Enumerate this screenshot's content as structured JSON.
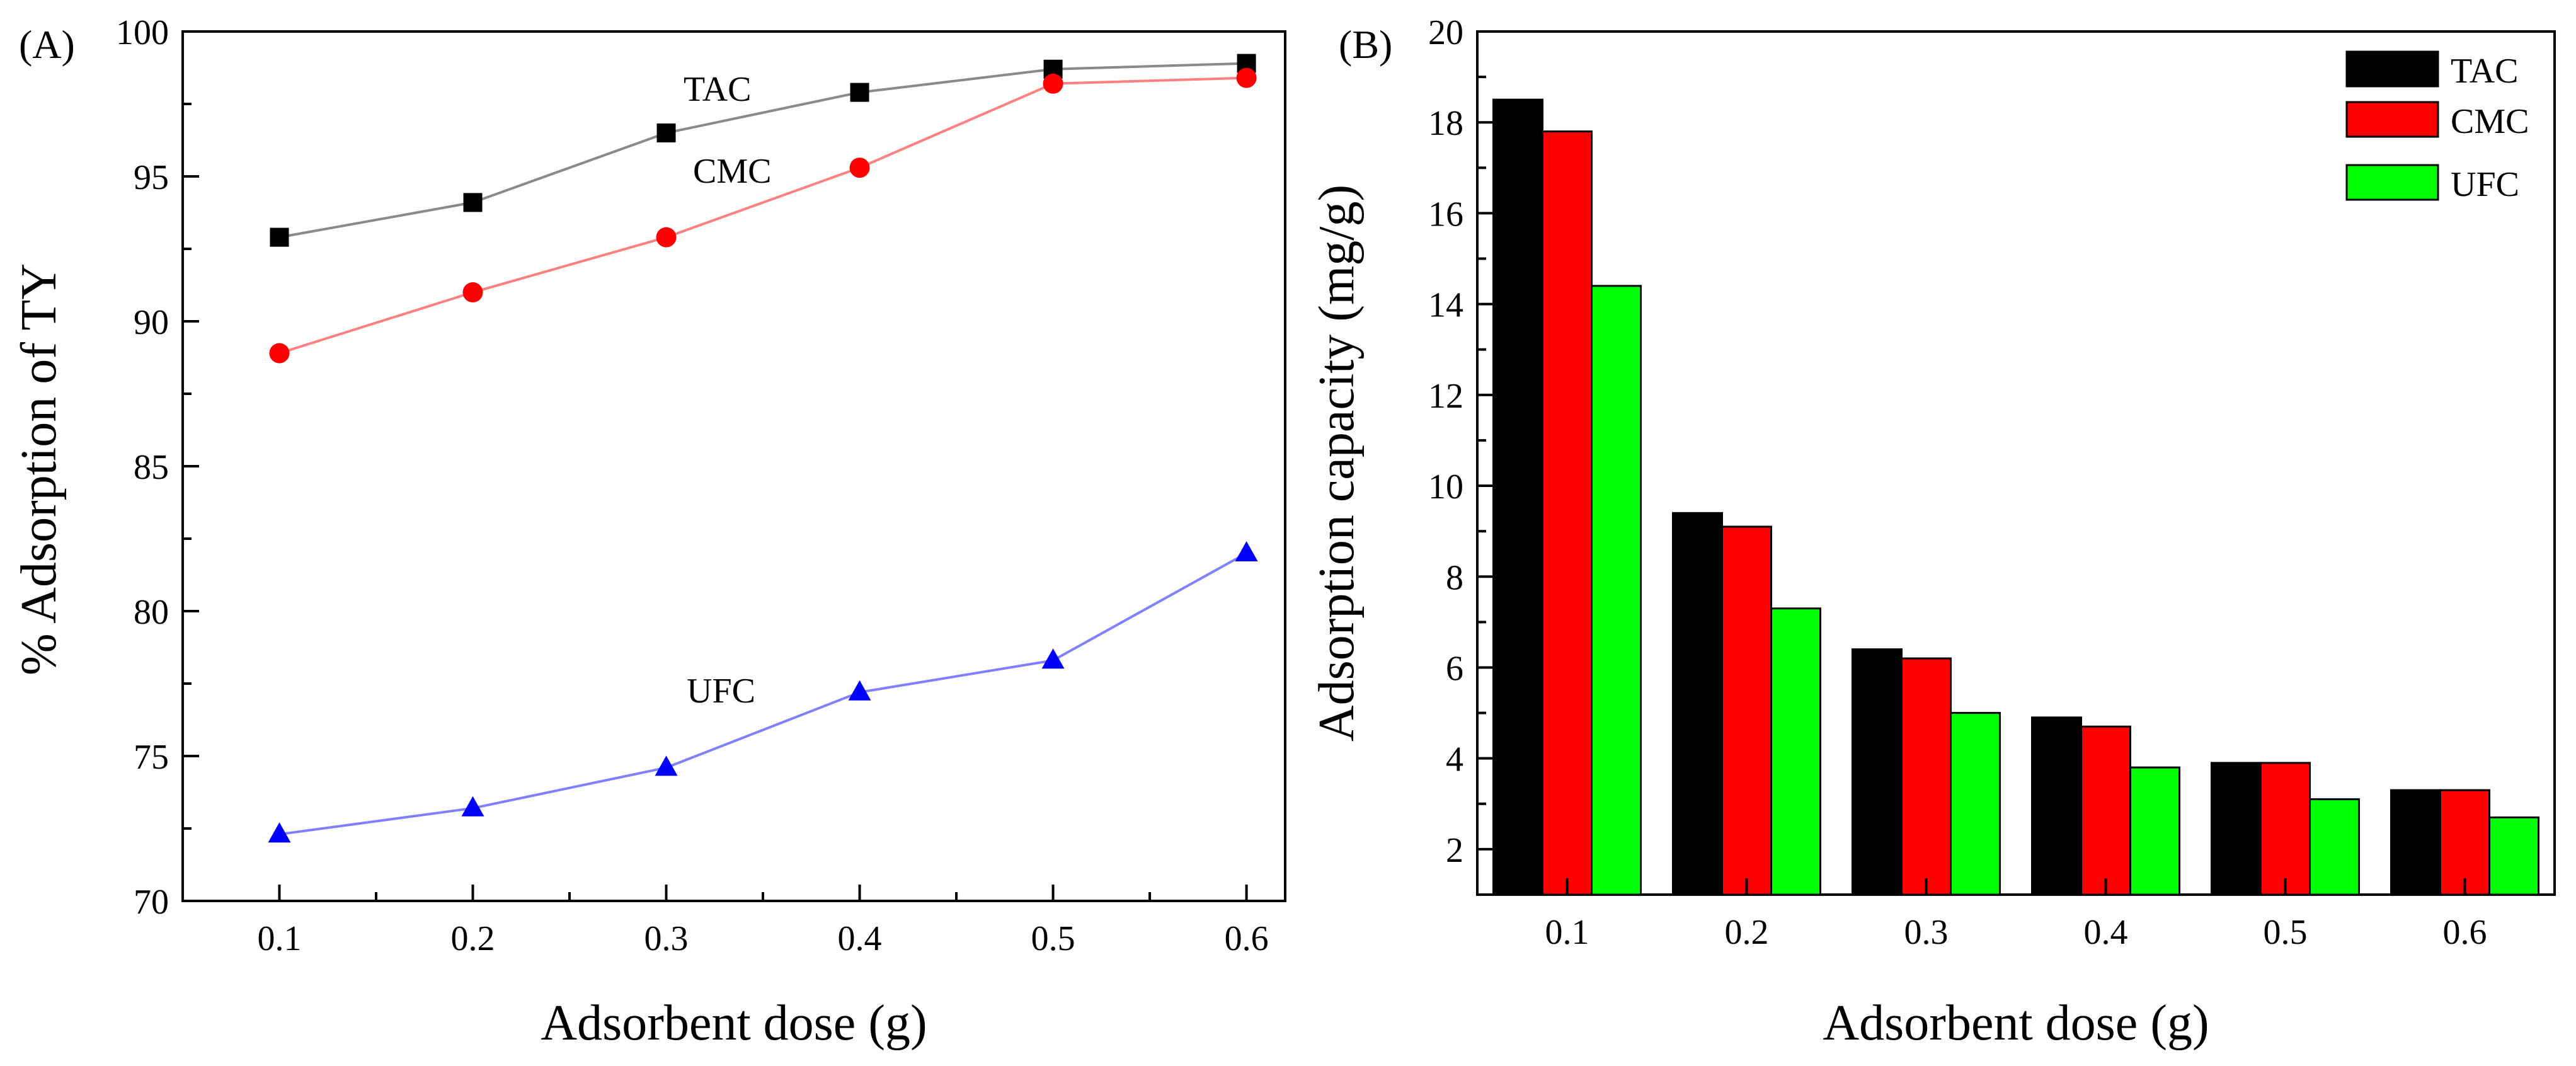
{
  "chart_data": [
    {
      "panel_label": "(A)",
      "type": "line",
      "xlabel": "Adsorbent dose (g)",
      "ylabel": "%  Adsorption of TY",
      "x": [
        0.1,
        0.2,
        0.3,
        0.4,
        0.5,
        0.6
      ],
      "xticks": [
        "0.1",
        "0.2",
        "0.3",
        "0.4",
        "0.5",
        "0.6"
      ],
      "xlim": [
        0.05,
        0.62
      ],
      "ylim": [
        70,
        100
      ],
      "yticks": [
        "70",
        "75",
        "80",
        "85",
        "90",
        "95",
        "100"
      ],
      "series": [
        {
          "name": "TAC",
          "marker": "square",
          "line_color": "#8a8a8a",
          "marker_color": "#000000",
          "values": [
            92.9,
            94.1,
            96.5,
            97.9,
            98.7,
            98.9
          ]
        },
        {
          "name": "CMC",
          "marker": "circle",
          "line_color": "#ff8080",
          "marker_color": "#ff0000",
          "values": [
            88.9,
            91.0,
            92.9,
            95.3,
            98.2,
            98.4
          ]
        },
        {
          "name": "UFC",
          "marker": "triangle",
          "line_color": "#8080ff",
          "marker_color": "#0000ff",
          "values": [
            72.3,
            73.2,
            74.6,
            77.2,
            78.3,
            82.0
          ]
        }
      ]
    },
    {
      "panel_label": "(B)",
      "type": "bar",
      "xlabel": "Adsorbent dose (g)",
      "ylabel": "Adsorption capacity (mg/g)",
      "categories": [
        "0.1",
        "0.2",
        "0.3",
        "0.4",
        "0.5",
        "0.6"
      ],
      "ylim": [
        1,
        20
      ],
      "yticks": [
        "2",
        "4",
        "6",
        "8",
        "10",
        "12",
        "14",
        "16",
        "18",
        "20"
      ],
      "legend_position": "top-right",
      "series": [
        {
          "name": "TAC",
          "color": "#000000",
          "values": [
            18.5,
            9.4,
            6.4,
            4.9,
            3.9,
            3.3
          ]
        },
        {
          "name": "CMC",
          "color": "#ff0000",
          "values": [
            17.8,
            9.1,
            6.2,
            4.7,
            3.9,
            3.3
          ]
        },
        {
          "name": "UFC",
          "color": "#00ff00",
          "values": [
            14.4,
            7.3,
            5.0,
            3.8,
            3.1,
            2.7
          ]
        }
      ]
    }
  ]
}
